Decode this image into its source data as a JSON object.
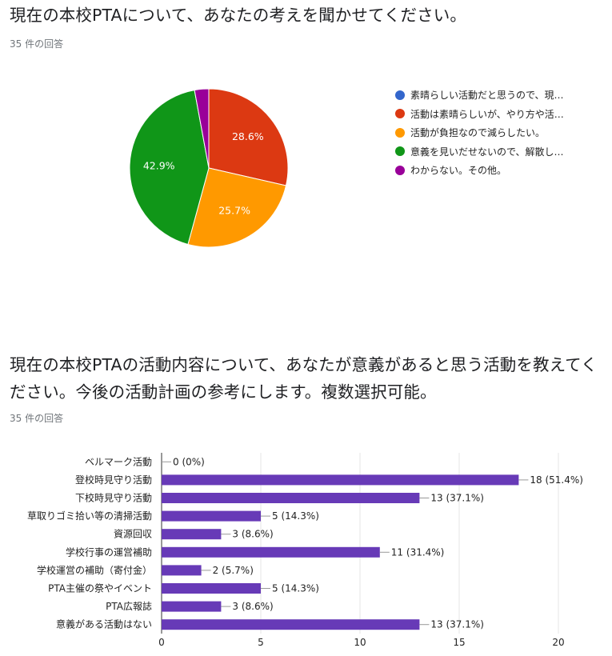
{
  "questions": [
    {
      "title": "現在の本校PTAについて、あなたの考えを聞かせてください。",
      "response_count": "35 件の回答"
    },
    {
      "title": "現在の本校PTAの活動内容について、あなたが意義があると思う活動を教えてください。今後の活動計画の参考にします。複数選択可能。",
      "response_count": "35 件の回答"
    }
  ],
  "chart_data": [
    {
      "type": "pie",
      "slices": [
        {
          "label": "素晴らしい活動だと思うので、現…",
          "value": 0,
          "percent_label": "",
          "color": "#3366cc"
        },
        {
          "label": "活動は素晴らしいが、やり方や活…",
          "value": 28.6,
          "percent_label": "28.6%",
          "color": "#dc3912"
        },
        {
          "label": "活動が負担なので減らしたい。",
          "value": 25.7,
          "percent_label": "25.7%",
          "color": "#ff9900"
        },
        {
          "label": "意義を見いだせないので、解散し…",
          "value": 42.9,
          "percent_label": "42.9%",
          "color": "#109618"
        },
        {
          "label": "わからない。その他。",
          "value": 2.9,
          "percent_label": "",
          "color": "#990099"
        }
      ],
      "legend_position": "right"
    },
    {
      "type": "bar",
      "orientation": "horizontal",
      "categories": [
        "ベルマーク活動",
        "登校時見守り活動",
        "下校時見守り活動",
        "草取りゴミ拾い等の清掃活動",
        "資源回収",
        "学校行事の運営補助",
        "学校運営の補助（寄付金）",
        "PTA主催の祭やイベント",
        "PTA広報誌",
        "意義がある活動はない"
      ],
      "values": [
        0,
        18,
        13,
        5,
        3,
        11,
        2,
        5,
        3,
        13
      ],
      "value_labels": [
        "0 (0%)",
        "18 (51.4%)",
        "13 (37.1%)",
        "5 (14.3%)",
        "3 (8.6%)",
        "11 (31.4%)",
        "2 (5.7%)",
        "5 (14.3%)",
        "3 (8.6%)",
        "13 (37.1%)"
      ],
      "xlim": [
        0,
        20
      ],
      "xticks": [
        "0",
        "5",
        "10",
        "15",
        "20"
      ],
      "grid": true,
      "bar_color": "#673ab7"
    }
  ]
}
